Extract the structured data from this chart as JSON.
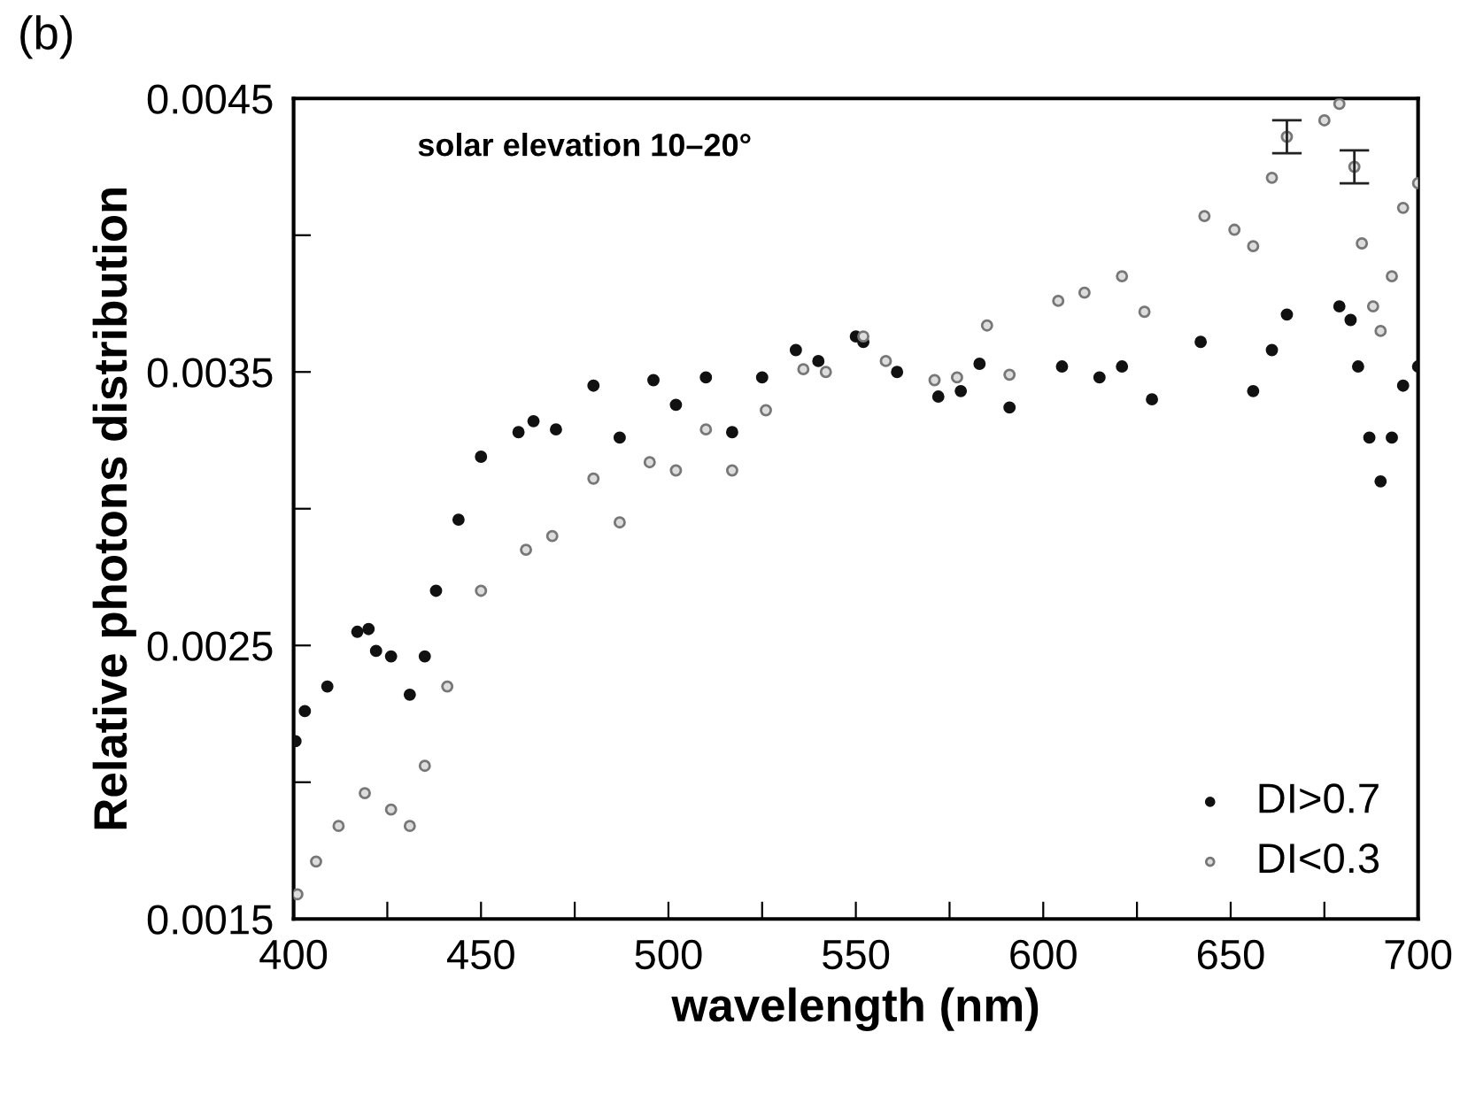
{
  "chart_data": {
    "type": "scatter",
    "xlabel": "wavelength (nm)",
    "ylabel": "Relative photons distribution",
    "annotations": [
      "(b)",
      "solar elevation 10–20°"
    ],
    "xlim": [
      400,
      700
    ],
    "ylim": [
      0.0015,
      0.0045
    ],
    "xticks": [
      400,
      {
        "value": 425,
        "label": null
      },
      450,
      {
        "value": 475,
        "label": null
      },
      500,
      {
        "value": 525,
        "label": null
      },
      550,
      {
        "value": 575,
        "label": null
      },
      600,
      {
        "value": 625,
        "label": null
      },
      650,
      {
        "value": 675,
        "label": null
      },
      700
    ],
    "yticks": [
      0.0015,
      {
        "value": 0.002,
        "label": null
      },
      0.0025,
      {
        "value": 0.003,
        "label": null
      },
      0.0035,
      {
        "value": 0.004,
        "label": null
      },
      0.0045
    ],
    "legend": "bottom right",
    "grid": false,
    "marker": "circle",
    "series": [
      {
        "name": "DI>0.7",
        "color": "#111111",
        "x": [
          400.5,
          403,
          409,
          417,
          420,
          422,
          426,
          431,
          435,
          438,
          444,
          450,
          460,
          464,
          470,
          480,
          487,
          496,
          502,
          510,
          517,
          525,
          534,
          540,
          550,
          552,
          561,
          572,
          578,
          583,
          591,
          605,
          615,
          621,
          629,
          642,
          656,
          661,
          665,
          679,
          682,
          684,
          687,
          690,
          693,
          696,
          700
        ],
        "values": [
          0.00215,
          0.00226,
          0.00235,
          0.00255,
          0.00256,
          0.00248,
          0.00246,
          0.00232,
          0.00246,
          0.0027,
          0.00296,
          0.00319,
          0.00328,
          0.00332,
          0.00329,
          0.00345,
          0.00326,
          0.00347,
          0.00338,
          0.00348,
          0.00328,
          0.00348,
          0.00358,
          0.00354,
          0.00363,
          0.00361,
          0.0035,
          0.00341,
          0.00343,
          0.00353,
          0.00337,
          0.00352,
          0.00348,
          0.00352,
          0.0034,
          0.00361,
          0.00343,
          0.00358,
          0.00371,
          0.00374,
          0.00369,
          0.00352,
          0.00326,
          0.0031,
          0.00326,
          0.00345,
          0.00352
        ]
      },
      {
        "name": "DI<0.3",
        "color": "#777777",
        "x": [
          401,
          406,
          412,
          419,
          426,
          431,
          435,
          441,
          450,
          462,
          469,
          480,
          487,
          495,
          502,
          510,
          517,
          526,
          536,
          542,
          552,
          558,
          571,
          577,
          585,
          591,
          604,
          611,
          621,
          627,
          643,
          651,
          656,
          661,
          665,
          675,
          679,
          683,
          685,
          688,
          690,
          693,
          696,
          700
        ],
        "values": [
          0.00159,
          0.00171,
          0.00184,
          0.00196,
          0.0019,
          0.00184,
          0.00206,
          0.00235,
          0.0027,
          0.00285,
          0.0029,
          0.00311,
          0.00295,
          0.00317,
          0.00314,
          0.00329,
          0.00314,
          0.00336,
          0.00351,
          0.0035,
          0.00363,
          0.00354,
          0.00347,
          0.00348,
          0.00367,
          0.00349,
          0.00376,
          0.00379,
          0.00385,
          0.00372,
          0.00407,
          0.00402,
          0.00396,
          0.00421,
          0.00436,
          0.00442,
          0.00448,
          0.00425,
          0.00397,
          0.00374,
          0.00365,
          0.00385,
          0.0041,
          0.00419
        ],
        "errors": [
          null,
          null,
          null,
          null,
          null,
          null,
          null,
          null,
          null,
          null,
          null,
          null,
          null,
          null,
          null,
          null,
          null,
          null,
          null,
          null,
          null,
          null,
          null,
          null,
          null,
          null,
          null,
          null,
          null,
          null,
          null,
          null,
          null,
          null,
          6e-05,
          null,
          null,
          6e-05,
          null,
          null,
          null,
          null,
          null,
          null
        ]
      }
    ]
  }
}
